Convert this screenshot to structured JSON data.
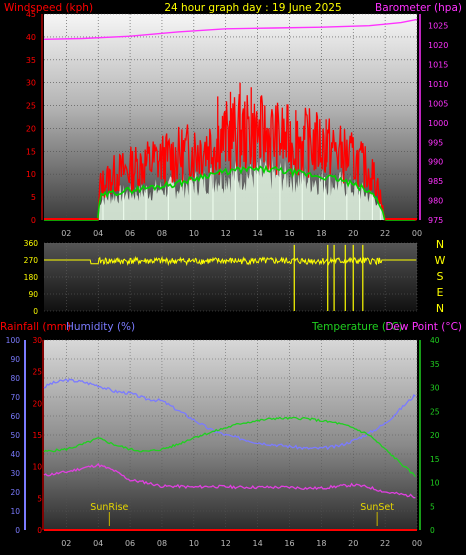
{
  "chart_data": [
    {
      "type": "line",
      "header": {
        "left_label": "Windspeed (kph)",
        "title": "24 hour graph day : 19 June 2025",
        "right_label": "Barometer (hpa)"
      },
      "x_ticks": [
        "02",
        "04",
        "06",
        "08",
        "10",
        "12",
        "14",
        "16",
        "18",
        "20",
        "22",
        "00"
      ],
      "y_left": {
        "ticks": [
          0,
          5,
          10,
          15,
          20,
          25,
          30,
          35,
          40,
          45
        ],
        "range": [
          0,
          45
        ]
      },
      "y_right": {
        "ticks": [
          975,
          980,
          985,
          990,
          995,
          1000,
          1005,
          1010,
          1015,
          1020,
          1025
        ],
        "range": [
          975,
          1028
        ]
      },
      "x_range": [
        0.6,
        24.0
      ],
      "series": [
        {
          "role": "barometer",
          "points": [
            [
              0.6,
              1021.5
            ],
            [
              3,
              1021.7
            ],
            [
              6,
              1022.3
            ],
            [
              9,
              1023.4
            ],
            [
              12,
              1024.2
            ],
            [
              15,
              1024.4
            ],
            [
              18,
              1024.6
            ],
            [
              21,
              1025.0
            ],
            [
              23,
              1025.8
            ],
            [
              24,
              1026.6
            ]
          ]
        },
        {
          "role": "gust_band",
          "envelope": [
            [
              0.6,
              0
            ],
            [
              4.0,
              0
            ],
            [
              4.1,
              9
            ],
            [
              5,
              12
            ],
            [
              7,
              15
            ],
            [
              9,
              17
            ],
            [
              11,
              20
            ],
            [
              12.5,
              23
            ],
            [
              14,
              23
            ],
            [
              16,
              21
            ],
            [
              18,
              20
            ],
            [
              20,
              16
            ],
            [
              21,
              13
            ],
            [
              21.5,
              10
            ],
            [
              22,
              0
            ],
            [
              24,
              0
            ]
          ]
        },
        {
          "role": "average_wind",
          "points": [
            [
              0.6,
              0
            ],
            [
              4.0,
              0
            ],
            [
              4.1,
              5
            ],
            [
              5,
              6
            ],
            [
              7,
              7
            ],
            [
              9,
              8
            ],
            [
              11,
              10
            ],
            [
              13,
              11
            ],
            [
              15,
              11
            ],
            [
              17,
              10
            ],
            [
              19,
              9
            ],
            [
              20.5,
              7
            ],
            [
              21.5,
              5
            ],
            [
              22,
              0
            ],
            [
              24,
              0
            ]
          ]
        },
        {
          "role": "direction_line",
          "points": [
            [
              0.6,
              270
            ],
            [
              3.5,
              270
            ],
            [
              4,
              250
            ],
            [
              24,
              270
            ]
          ]
        }
      ],
      "gust_spikes": [
        [
          11.5,
          27
        ],
        [
          12.3,
          28
        ],
        [
          12.9,
          30
        ],
        [
          13.6,
          29
        ],
        [
          14.2,
          27
        ],
        [
          16.4,
          24
        ],
        [
          18.3,
          22
        ]
      ],
      "drops": [
        [
          4.0,
          0
        ],
        [
          4.3,
          0
        ],
        [
          5.6,
          0
        ],
        [
          7.0,
          0
        ],
        [
          8.4,
          0
        ],
        [
          9.8,
          0
        ],
        [
          11.2,
          0
        ],
        [
          12.6,
          0
        ],
        [
          14.0,
          0
        ],
        [
          15.4,
          0
        ],
        [
          16.8,
          0
        ],
        [
          18.2,
          0
        ],
        [
          19.6,
          0
        ],
        [
          20.4,
          0
        ],
        [
          21.2,
          0
        ],
        [
          21.7,
          0
        ]
      ],
      "direction": {
        "y_ticks": [
          0,
          90,
          180,
          270,
          360
        ],
        "compass": [
          "N",
          "W",
          "S",
          "E",
          "N"
        ],
        "drops": [
          16.3,
          18.4,
          18.8,
          19.5,
          20.0,
          20.6
        ]
      }
    },
    {
      "type": "line",
      "header": {
        "rain_label": "Rainfall (mm)",
        "humidity_label": "Humidity (%)",
        "temperature_label": "Temperature (°C)",
        "dewpoint_label": "Dew Point (°C)"
      },
      "x_ticks": [
        "02",
        "04",
        "06",
        "08",
        "10",
        "12",
        "14",
        "16",
        "18",
        "20",
        "22",
        "00"
      ],
      "humidity_axis": {
        "ticks": [
          0,
          10,
          20,
          30,
          40,
          50,
          60,
          70,
          80,
          90,
          100
        ],
        "range": [
          0,
          100
        ]
      },
      "rain_axis": {
        "ticks": [
          0,
          5,
          10,
          15,
          20,
          25,
          30
        ],
        "range": [
          0,
          30
        ]
      },
      "temp_axis": {
        "ticks": [
          0,
          5,
          10,
          15,
          20,
          25,
          30,
          35,
          40
        ],
        "range": [
          0,
          40
        ]
      },
      "series": [
        {
          "role": "humidity",
          "points": [
            [
              0.6,
              75
            ],
            [
              1,
              77
            ],
            [
              2,
              79
            ],
            [
              3,
              78
            ],
            [
              4,
              76
            ],
            [
              5,
              73
            ],
            [
              6,
              72
            ],
            [
              7,
              69
            ],
            [
              8,
              68
            ],
            [
              9,
              63
            ],
            [
              10,
              58
            ],
            [
              11,
              53
            ],
            [
              12,
              50
            ],
            [
              13,
              48
            ],
            [
              14,
              46
            ],
            [
              15,
              45
            ],
            [
              16,
              44
            ],
            [
              17,
              43
            ],
            [
              18,
              43
            ],
            [
              19,
              44
            ],
            [
              20,
              47
            ],
            [
              21,
              51
            ],
            [
              22,
              56
            ],
            [
              23,
              64
            ],
            [
              24,
              72
            ]
          ]
        },
        {
          "role": "temperature",
          "points": [
            [
              0.6,
              16.5
            ],
            [
              2,
              17
            ],
            [
              3,
              18
            ],
            [
              4,
              19.3
            ],
            [
              5,
              18
            ],
            [
              6,
              17
            ],
            [
              7,
              16.5
            ],
            [
              8,
              17
            ],
            [
              9,
              18
            ],
            [
              10,
              19.5
            ],
            [
              11,
              20.5
            ],
            [
              12,
              21.5
            ],
            [
              13,
              22.5
            ],
            [
              14,
              23
            ],
            [
              15,
              23.5
            ],
            [
              16,
              23.5
            ],
            [
              17,
              23.5
            ],
            [
              18,
              23
            ],
            [
              19,
              22.5
            ],
            [
              20,
              21.5
            ],
            [
              21,
              20
            ],
            [
              22,
              17
            ],
            [
              23,
              14
            ],
            [
              24,
              11
            ]
          ]
        },
        {
          "role": "dew_point",
          "points": [
            [
              0.6,
              11.5
            ],
            [
              2,
              12.2
            ],
            [
              3,
              13
            ],
            [
              4,
              13.7
            ],
            [
              5,
              12.5
            ],
            [
              6,
              10.5
            ],
            [
              7,
              10
            ],
            [
              8,
              9.2
            ],
            [
              9,
              9.2
            ],
            [
              10,
              9
            ],
            [
              11,
              9.2
            ],
            [
              12,
              9.1
            ],
            [
              13,
              9
            ],
            [
              14,
              9
            ],
            [
              15,
              9
            ],
            [
              16,
              9
            ],
            [
              17,
              8.8
            ],
            [
              18,
              8.8
            ],
            [
              19,
              9.2
            ],
            [
              20,
              9.5
            ],
            [
              21,
              9
            ],
            [
              22,
              8
            ],
            [
              23,
              7.5
            ],
            [
              24,
              7
            ]
          ]
        },
        {
          "role": "rainfall",
          "points": [
            [
              0.6,
              0
            ],
            [
              24,
              0
            ]
          ]
        }
      ],
      "sunrise": {
        "label": "SunRise",
        "time": 4.7
      },
      "sunset": {
        "label": "SunSet",
        "time": 21.5
      }
    }
  ],
  "colors": {
    "windspeed": "#ff0000",
    "barometer": "#ff33ff",
    "title": "#ffff00",
    "average_wind": "#00d400",
    "wind_fill": "#ddeedd",
    "direction": "#ffff00",
    "humidity": "#7b7bff",
    "temperature": "#20d020",
    "dew_point": "#e040e0",
    "rainfall": "#ff0000"
  }
}
